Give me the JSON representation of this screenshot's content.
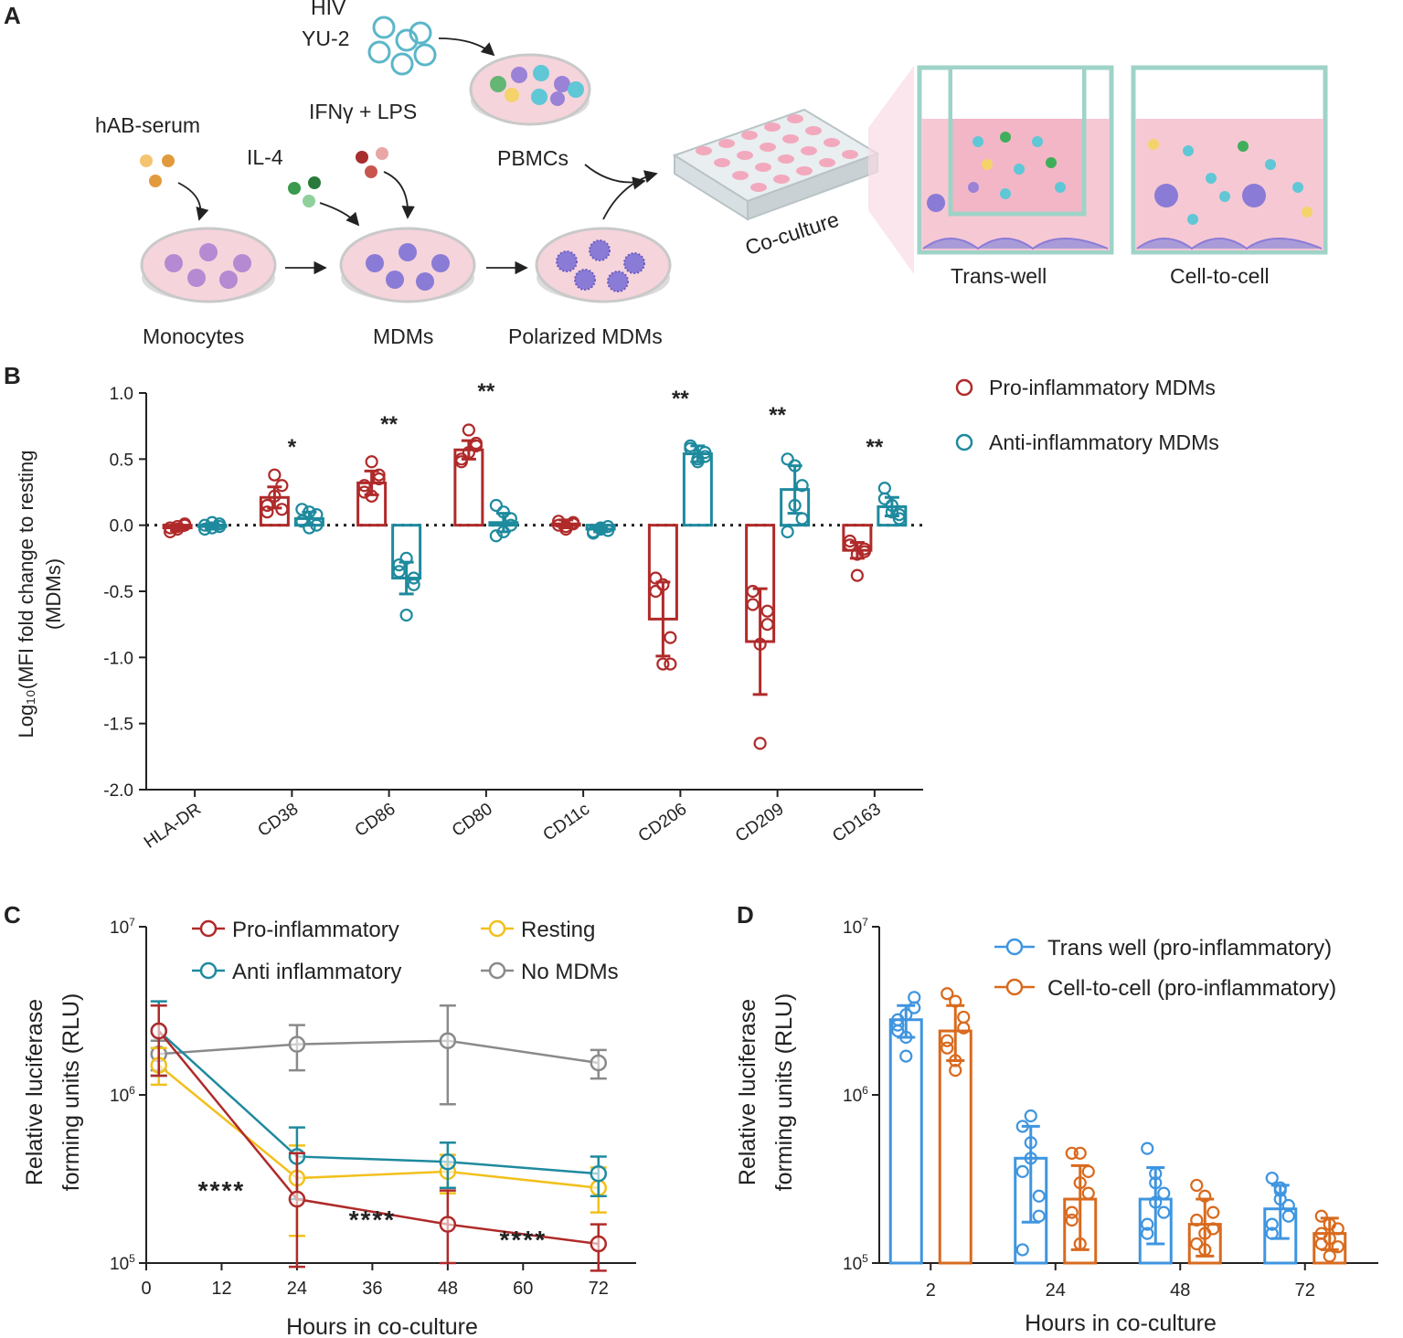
{
  "panels": {
    "a": "A",
    "b": "B",
    "c": "C",
    "d": "D"
  },
  "colors": {
    "pro": "#b02a2a",
    "anti": "#1e8a9e",
    "resting": "#f2c01c",
    "nomdm": "#8a8a8a",
    "transwell": "#3f95e0",
    "celltocell": "#d86a1e",
    "dish": "#f6d4dc",
    "dish_edge": "#c9c9c9"
  },
  "panel_a": {
    "hiv": "HIV",
    "yu2": "YU-2",
    "hab_serum": "hAB-serum",
    "il4": "IL-4",
    "ifn_lps": "IFNγ + LPS",
    "pbmcs": "PBMCs",
    "monocytes": "Monocytes",
    "mdms": "MDMs",
    "polarized": "Polarized MDMs",
    "coculture": "Co-culture",
    "transwell": "Trans-well",
    "celltocell": "Cell-to-cell"
  },
  "chart_data": [
    {
      "id": "B",
      "type": "bar",
      "ylabel_line1": "Log₁₀(MFI fold change to resting",
      "ylabel_line2": "(MDMs)",
      "ylim": [
        -2.0,
        1.0
      ],
      "yticks": [
        "1.0",
        "0.5",
        "0.0",
        "-0.5",
        "-1.0",
        "-1.5",
        "-2.0"
      ],
      "ytick_values": [
        1.0,
        0.5,
        0.0,
        -0.5,
        -1.0,
        -1.5,
        -2.0
      ],
      "categories": [
        "HLA-DR",
        "CD38",
        "CD86",
        "CD80",
        "CD11c",
        "CD206",
        "CD209",
        "CD163"
      ],
      "significance": [
        "",
        "*",
        "**",
        "**",
        "",
        "**",
        "**",
        "**"
      ],
      "series": [
        {
          "name": "Pro-inflammatory MDMs",
          "values": [
            -0.02,
            0.21,
            0.32,
            0.57,
            0.01,
            -0.71,
            -0.88,
            -0.19
          ],
          "err": [
            0.02,
            0.08,
            0.09,
            0.07,
            0.03,
            0.28,
            0.4,
            0.06
          ],
          "points": [
            [
              -0.05,
              -0.01,
              0.01,
              -0.02,
              -0.03,
              0.0
            ],
            [
              0.1,
              0.38,
              0.3,
              0.15,
              0.22,
              0.12
            ],
            [
              0.25,
              0.48,
              0.38,
              0.3,
              0.22,
              0.35
            ],
            [
              0.5,
              0.72,
              0.6,
              0.48,
              0.55,
              0.62
            ],
            [
              0.0,
              -0.03,
              0.02,
              0.03,
              -0.01,
              0.01
            ],
            [
              -0.4,
              -1.05,
              -0.85,
              -0.5,
              -0.45,
              -1.05
            ],
            [
              -0.6,
              -1.65,
              -0.75,
              -0.5,
              -0.9,
              -0.65
            ],
            [
              -0.15,
              -0.38,
              -0.2,
              -0.12,
              -0.22,
              -0.18
            ]
          ]
        },
        {
          "name": "Anti-inflammatory MDMs",
          "values": [
            -0.01,
            0.05,
            -0.4,
            0.02,
            -0.03,
            0.54,
            0.27,
            0.14
          ],
          "err": [
            0.02,
            0.05,
            0.12,
            0.07,
            0.02,
            0.06,
            0.18,
            0.07
          ],
          "points": [
            [
              -0.03,
              0.02,
              -0.01,
              0.0,
              -0.02,
              0.01
            ],
            [
              0.12,
              -0.02,
              0.08,
              0.03,
              0.1,
              0.0
            ],
            [
              -0.3,
              -0.68,
              -0.45,
              -0.35,
              -0.25,
              -0.4
            ],
            [
              0.15,
              -0.05,
              0.05,
              -0.08,
              0.1,
              0.0
            ],
            [
              -0.05,
              -0.02,
              -0.01,
              -0.06,
              -0.03,
              -0.04
            ],
            [
              0.6,
              0.5,
              0.52,
              0.58,
              0.48,
              0.55
            ],
            [
              0.5,
              0.15,
              0.05,
              -0.05,
              0.45,
              0.3
            ],
            [
              0.28,
              0.1,
              0.05,
              0.2,
              0.15,
              0.08
            ]
          ]
        }
      ]
    },
    {
      "id": "C",
      "type": "line",
      "ylabel_line1": "Relative luciferase",
      "ylabel_line2": "forming units (RLU)",
      "xlabel": "Hours in  co-culture",
      "yscale": "log",
      "ylim": [
        100000,
        10000000
      ],
      "yticks": [
        {
          "base": "10",
          "exp": "7",
          "value": 10000000
        },
        {
          "base": "10",
          "exp": "6",
          "value": 1000000
        },
        {
          "base": "10",
          "exp": "5",
          "value": 100000
        }
      ],
      "xlim": [
        0,
        78
      ],
      "xticks": [
        "0",
        "12",
        "24",
        "36",
        "48",
        "60",
        "72"
      ],
      "xtick_values": [
        0,
        12,
        24,
        36,
        48,
        60,
        72
      ],
      "x": [
        2,
        24,
        48,
        72
      ],
      "series": [
        {
          "name": "Pro-inflammatory",
          "key": "pro",
          "values": [
            2400000,
            240000,
            170000,
            130000
          ],
          "lo": [
            1300000,
            95000,
            100000,
            90000
          ],
          "hi": [
            3400000,
            450000,
            270000,
            170000
          ]
        },
        {
          "name": "Anti inflammatory",
          "key": "anti",
          "values": [
            2400000,
            430000,
            400000,
            340000
          ],
          "lo": [
            1300000,
            240000,
            280000,
            250000
          ],
          "hi": [
            3600000,
            640000,
            520000,
            430000
          ]
        },
        {
          "name": "Resting",
          "key": "resting",
          "values": [
            1500000,
            320000,
            350000,
            280000
          ],
          "lo": [
            1150000,
            145000,
            260000,
            200000
          ],
          "hi": [
            1900000,
            500000,
            440000,
            370000
          ]
        },
        {
          "name": "No MDMs",
          "key": "nomdm",
          "values": [
            1750000,
            2000000,
            2100000,
            1550000
          ],
          "lo": [
            1400000,
            1400000,
            880000,
            1250000
          ],
          "hi": [
            2100000,
            2600000,
            3400000,
            1850000
          ]
        }
      ],
      "annotations": [
        {
          "text": "****",
          "x": 12
        },
        {
          "text": "****",
          "x": 36
        },
        {
          "text": "****",
          "x": 60
        }
      ]
    },
    {
      "id": "D",
      "type": "bar",
      "ylabel_line1": "Relative luciferase",
      "ylabel_line2": "forming units (RLU)",
      "xlabel": "Hours in  co-culture",
      "yscale": "log",
      "ylim": [
        100000,
        10000000
      ],
      "yticks": [
        {
          "base": "10",
          "exp": "7",
          "value": 10000000
        },
        {
          "base": "10",
          "exp": "6",
          "value": 1000000
        },
        {
          "base": "10",
          "exp": "5",
          "value": 100000
        }
      ],
      "categories": [
        "2",
        "24",
        "48",
        "72"
      ],
      "series": [
        {
          "name": "Trans well (pro-inflammatory)",
          "key": "transwell",
          "values": [
            2800000,
            420000,
            240000,
            210000
          ],
          "lo": [
            2200000,
            175000,
            130000,
            140000
          ],
          "hi": [
            3400000,
            650000,
            370000,
            290000
          ],
          "points": [
            [
              2400000,
              3000000,
              3800000,
              2600000,
              1700000,
              3300000,
              2800000,
              2200000
            ],
            [
              650000,
              420000,
              250000,
              350000,
              750000,
              190000,
              120000,
              520000
            ],
            [
              480000,
              340000,
              200000,
              150000,
              230000,
              260000,
              170000,
              300000
            ],
            [
              320000,
              280000,
              190000,
              150000,
              240000,
              220000,
              170000,
              270000
            ]
          ]
        },
        {
          "name": "Cell-to-cell (pro-inflammatory)",
          "key": "celltocell",
          "values": [
            2400000,
            240000,
            170000,
            150000
          ],
          "lo": [
            1600000,
            120000,
            110000,
            120000
          ],
          "hi": [
            3400000,
            380000,
            240000,
            185000
          ],
          "points": [
            [
              4000000,
              3600000,
              2900000,
              1900000,
              1600000,
              2500000,
              2100000,
              1400000
            ],
            [
              450000,
              450000,
              350000,
              200000,
              130000,
              260000,
              180000,
              300000
            ],
            [
              290000,
              250000,
              200000,
              130000,
              150000,
              160000,
              180000,
              120000
            ],
            [
              190000,
              170000,
              160000,
              130000,
              140000,
              125000,
              150000,
              110000
            ]
          ]
        }
      ]
    }
  ]
}
